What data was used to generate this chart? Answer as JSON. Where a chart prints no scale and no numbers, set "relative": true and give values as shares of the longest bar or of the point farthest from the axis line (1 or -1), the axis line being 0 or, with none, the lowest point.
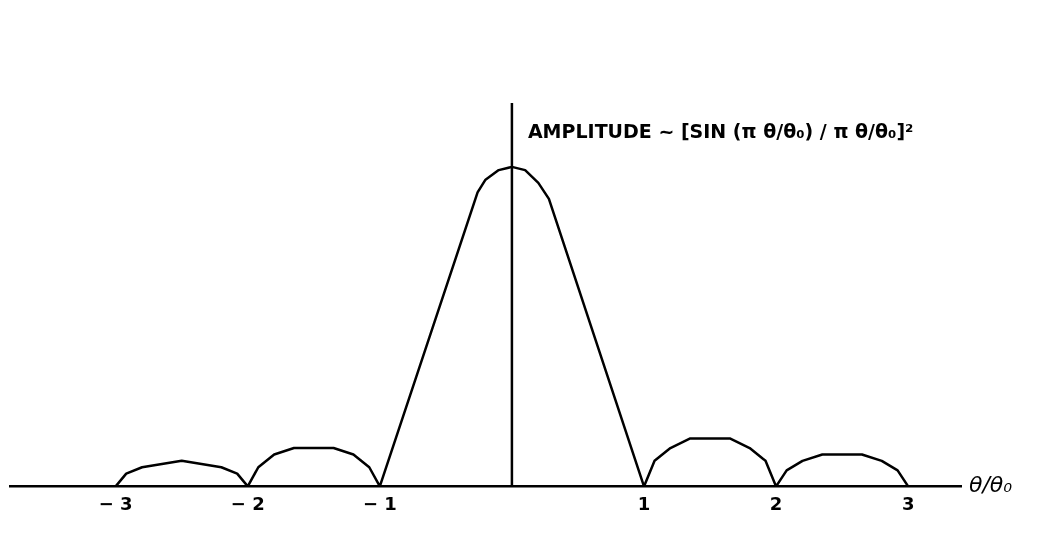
{
  "chart_data": {
    "type": "line",
    "relative": true,
    "xlabel": "θ/θ₀",
    "annotations": [
      "AMPLITUDE ~ [SIN (π θ/θ₀) / π θ/θ₀]²"
    ],
    "xlim": [
      -3.8,
      3.4
    ],
    "xticks": [
      -3,
      -2,
      -1,
      1,
      2,
      3
    ],
    "grid": false,
    "legend": false,
    "marker": "none",
    "line_style": "solid",
    "ref_lines": [
      {
        "axis": "x",
        "value": 0,
        "color": "#000000"
      }
    ],
    "series": [
      {
        "color": "#000000",
        "x": [
          -3,
          -2.92,
          -2.8,
          -2.65,
          -2.5,
          -2.35,
          -2.2,
          -2.08,
          -2,
          -1.92,
          -1.8,
          -1.65,
          -1.5,
          -1.35,
          -1.2,
          -1.08,
          -1,
          -0.26,
          -0.2,
          -0.1,
          0,
          0.1,
          0.2,
          0.28,
          1,
          1.08,
          1.2,
          1.35,
          1.5,
          1.65,
          1.8,
          1.92,
          2,
          2.08,
          2.2,
          2.35,
          2.5,
          2.65,
          2.8,
          2.92,
          3
        ],
        "values": [
          0,
          0.04,
          0.06,
          0.07,
          0.08,
          0.07,
          0.06,
          0.04,
          0,
          0.06,
          0.1,
          0.12,
          0.12,
          0.12,
          0.1,
          0.06,
          0,
          0.92,
          0.96,
          0.99,
          1,
          0.99,
          0.95,
          0.9,
          0,
          0.08,
          0.12,
          0.15,
          0.15,
          0.15,
          0.12,
          0.08,
          0,
          0.05,
          0.08,
          0.1,
          0.1,
          0.1,
          0.08,
          0.05,
          0
        ]
      }
    ]
  }
}
